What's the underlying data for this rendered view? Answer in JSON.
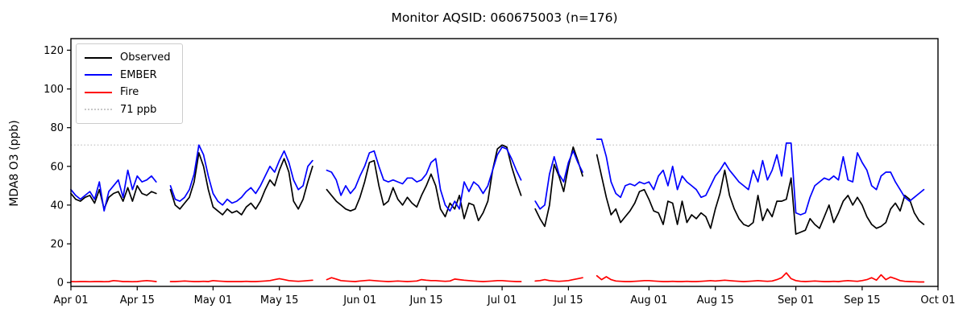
{
  "chart_data": {
    "type": "line",
    "title": "Monitor AQSID: 060675003 (n=176)",
    "ylabel": "MDA8 O3 (ppb)",
    "xlabel": "",
    "ylim": [
      -2,
      126
    ],
    "yticks": [
      0,
      20,
      40,
      60,
      80,
      100,
      120
    ],
    "x_day_max": 183,
    "x_start": "Apr 01",
    "grid": false,
    "legend_position": "upper left",
    "xticks": [
      {
        "day": 0,
        "label": "Apr 01"
      },
      {
        "day": 14,
        "label": "Apr 15"
      },
      {
        "day": 30,
        "label": "May 01"
      },
      {
        "day": 44,
        "label": "May 15"
      },
      {
        "day": 61,
        "label": "Jun 01"
      },
      {
        "day": 75,
        "label": "Jun 15"
      },
      {
        "day": 91,
        "label": "Jul 01"
      },
      {
        "day": 105,
        "label": "Jul 15"
      },
      {
        "day": 122,
        "label": "Aug 01"
      },
      {
        "day": 136,
        "label": "Aug 15"
      },
      {
        "day": 153,
        "label": "Sep 01"
      },
      {
        "day": 167,
        "label": "Sep 15"
      },
      {
        "day": 183,
        "label": "Oct 01"
      }
    ],
    "threshold": {
      "value": 71,
      "label": "71 ppb",
      "color": "#c8c8c8",
      "style": "dotted"
    },
    "series": [
      {
        "name": "Observed",
        "color": "#000000",
        "values": [
          46,
          43,
          42,
          44,
          45,
          41,
          48,
          38,
          44,
          46,
          47,
          42,
          49,
          42,
          50,
          46,
          45,
          47,
          46,
          null,
          null,
          48,
          40,
          38,
          41,
          44,
          52,
          67,
          60,
          48,
          39,
          37,
          35,
          38,
          36,
          37,
          35,
          39,
          41,
          38,
          42,
          48,
          53,
          50,
          58,
          64,
          57,
          42,
          38,
          43,
          52,
          60,
          null,
          null,
          48,
          45,
          42,
          40,
          38,
          37,
          38,
          44,
          52,
          62,
          63,
          50,
          40,
          42,
          49,
          43,
          40,
          44,
          41,
          39,
          45,
          50,
          56,
          50,
          38,
          34,
          41,
          38,
          45,
          33,
          41,
          40,
          32,
          36,
          42,
          58,
          69,
          71,
          70,
          60,
          52,
          45,
          null,
          null,
          38,
          33,
          29,
          40,
          61,
          55,
          47,
          60,
          70,
          63,
          55,
          null,
          null,
          66,
          55,
          44,
          35,
          38,
          31,
          34,
          37,
          41,
          47,
          48,
          43,
          37,
          36,
          30,
          42,
          41,
          30,
          42,
          31,
          35,
          33,
          36,
          34,
          28,
          38,
          46,
          58,
          45,
          38,
          33,
          30,
          29,
          31,
          45,
          32,
          38,
          34,
          42,
          42,
          43,
          54,
          25,
          26,
          27,
          33,
          30,
          28,
          34,
          40,
          31,
          36,
          42,
          45,
          40,
          44,
          40,
          34,
          30,
          28,
          29,
          31,
          38,
          41,
          37,
          45,
          43,
          36,
          32,
          30
        ]
      },
      {
        "name": "EMBER",
        "color": "#0000ff",
        "values": [
          48,
          45,
          43,
          45,
          47,
          43,
          52,
          37,
          47,
          50,
          53,
          44,
          58,
          48,
          55,
          52,
          53,
          55,
          52,
          null,
          null,
          50,
          43,
          42,
          44,
          48,
          56,
          71,
          66,
          55,
          46,
          42,
          40,
          43,
          41,
          42,
          44,
          47,
          49,
          46,
          50,
          55,
          60,
          57,
          63,
          68,
          62,
          53,
          48,
          50,
          60,
          63,
          null,
          null,
          58,
          57,
          53,
          45,
          50,
          46,
          49,
          55,
          60,
          67,
          68,
          60,
          53,
          52,
          53,
          52,
          51,
          54,
          54,
          52,
          53,
          56,
          62,
          64,
          48,
          40,
          37,
          42,
          38,
          52,
          47,
          52,
          50,
          46,
          50,
          58,
          66,
          70,
          69,
          64,
          58,
          53,
          null,
          null,
          42,
          38,
          40,
          56,
          65,
          56,
          52,
          62,
          68,
          62,
          57,
          null,
          null,
          74,
          74,
          65,
          52,
          46,
          44,
          50,
          51,
          50,
          52,
          51,
          52,
          48,
          55,
          58,
          50,
          60,
          48,
          55,
          52,
          50,
          48,
          44,
          45,
          50,
          55,
          58,
          62,
          58,
          55,
          52,
          50,
          48,
          58,
          52,
          63,
          53,
          58,
          66,
          55,
          72,
          72,
          36,
          35,
          36,
          44,
          50,
          52,
          54,
          53,
          55,
          53,
          65,
          53,
          52,
          67,
          62,
          58,
          50,
          48,
          55,
          57,
          57,
          52,
          48,
          44,
          42,
          44,
          46,
          48
        ]
      },
      {
        "name": "Fire",
        "color": "#ff0000",
        "values": [
          0.5,
          0.4,
          0.5,
          0.5,
          0.4,
          0.5,
          0.5,
          0.4,
          0.5,
          1,
          0.8,
          0.5,
          0.5,
          0.4,
          0.5,
          0.8,
          1,
          0.8,
          0.5,
          null,
          null,
          0.5,
          0.5,
          0.6,
          0.8,
          0.6,
          0.5,
          0.5,
          0.6,
          0.5,
          1,
          0.8,
          0.6,
          0.5,
          0.5,
          0.5,
          0.5,
          0.6,
          0.5,
          0.5,
          0.6,
          0.8,
          1,
          1.5,
          2,
          1.5,
          1,
          0.8,
          0.6,
          0.8,
          1,
          1.2,
          null,
          null,
          1.5,
          2.5,
          1.8,
          1,
          0.8,
          0.6,
          0.5,
          0.8,
          1,
          1.2,
          1,
          0.8,
          0.6,
          0.5,
          0.6,
          0.8,
          0.6,
          0.5,
          0.6,
          0.8,
          1.5,
          1.2,
          1,
          1,
          0.8,
          0.6,
          0.8,
          1.8,
          1.5,
          1.2,
          1,
          0.8,
          0.6,
          0.5,
          0.6,
          0.8,
          1,
          1,
          0.8,
          0.6,
          0.5,
          0.5,
          null,
          null,
          0.8,
          1,
          1.5,
          1,
          0.8,
          0.6,
          0.8,
          1,
          1.5,
          2,
          2.5,
          null,
          null,
          3.5,
          1.5,
          3,
          1.5,
          0.8,
          0.6,
          0.5,
          0.5,
          0.6,
          0.8,
          1,
          1,
          0.8,
          0.6,
          0.5,
          0.5,
          0.6,
          0.5,
          0.5,
          0.6,
          0.5,
          0.5,
          0.6,
          0.8,
          1,
          0.8,
          1,
          1.2,
          1,
          0.8,
          0.6,
          0.5,
          0.6,
          0.8,
          1,
          0.8,
          0.6,
          0.8,
          1.5,
          2.5,
          5,
          2,
          1,
          0.6,
          0.5,
          0.6,
          0.8,
          0.6,
          0.5,
          0.5,
          0.6,
          0.5,
          0.8,
          1,
          0.8,
          0.6,
          1,
          1.5,
          2.5,
          1.2,
          4,
          1.5,
          2.8,
          2,
          1,
          0.6,
          0.5,
          0.4,
          0.3,
          0.3
        ]
      }
    ],
    "legend_entries": [
      "Observed",
      "EMBER",
      "Fire",
      "71 ppb"
    ]
  }
}
